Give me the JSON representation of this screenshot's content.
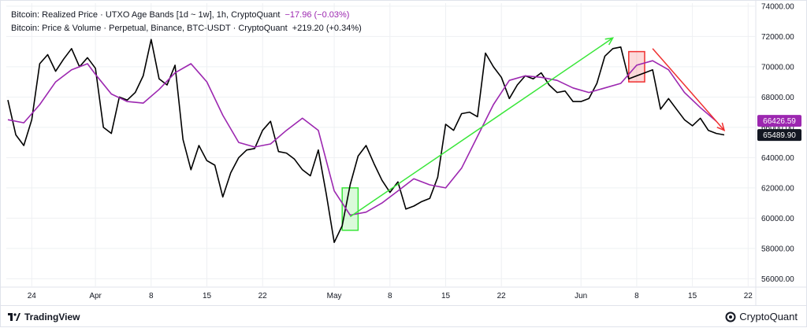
{
  "legend": {
    "line1_label": "Bitcoin: Realized Price · UTXO Age Bands [1d ~ 1w], 1h, CryptoQuant",
    "line1_value": "−17.96 (−0.03%)",
    "line2_label": "Bitcoin: Price & Volume · Perpetual, Binance, BTC-USDT · CryptoQuant",
    "line2_value": "+219.20 (+0.34%)"
  },
  "footer": {
    "left_brand": "TradingView",
    "right_brand": "CryptoQuant"
  },
  "colors": {
    "price_line": "#000000",
    "realized_line": "#9c27b0",
    "up_arrow": "#39e639",
    "down_arrow": "#ef3030",
    "grid": "#eef0f3"
  },
  "chart_data": {
    "type": "line",
    "x_ticks": [
      "24",
      "Apr",
      "8",
      "15",
      "22",
      "May",
      "8",
      "15",
      "22",
      "Jun",
      "8",
      "15",
      "22"
    ],
    "y_ticks": [
      "74000.00",
      "72000.00",
      "70000.00",
      "68000.00",
      "66000.00",
      "64000.00",
      "62000.00",
      "60000.00",
      "58000.00",
      "56000.00"
    ],
    "ylim": [
      55500,
      74200
    ],
    "price_labels": {
      "realized_price": "66426.59",
      "last_price": "65489.90"
    },
    "series": [
      {
        "name": "Bitcoin: Price & Volume · Perpetual, Binance, BTC-USDT · CryptoQuant",
        "color": "#000000",
        "x": [
          "03-21",
          "03-22",
          "03-23",
          "03-24",
          "03-25",
          "03-26",
          "03-27",
          "03-28",
          "03-29",
          "03-30",
          "03-31",
          "04-01",
          "04-02",
          "04-03",
          "04-04",
          "04-05",
          "04-06",
          "04-07",
          "04-08",
          "04-09",
          "04-10",
          "04-11",
          "04-12",
          "04-13",
          "04-14",
          "04-15",
          "04-16",
          "04-17",
          "04-18",
          "04-19",
          "04-20",
          "04-21",
          "04-22",
          "04-23",
          "04-24",
          "04-25",
          "04-26",
          "04-27",
          "04-28",
          "04-29",
          "04-30",
          "05-01",
          "05-02",
          "05-03",
          "05-04",
          "05-05",
          "05-06",
          "05-07",
          "05-08",
          "05-09",
          "05-10",
          "05-11",
          "05-12",
          "05-13",
          "05-14",
          "05-15",
          "05-16",
          "05-17",
          "05-18",
          "05-19",
          "05-20",
          "05-21",
          "05-22",
          "05-23",
          "05-24",
          "05-25",
          "05-26",
          "05-27",
          "05-28",
          "05-29",
          "05-30",
          "05-31",
          "06-01",
          "06-02",
          "06-03",
          "06-04",
          "06-05",
          "06-06",
          "06-07",
          "06-08",
          "06-09",
          "06-10",
          "06-11",
          "06-12",
          "06-13",
          "06-14",
          "06-15",
          "06-16",
          "06-17",
          "06-18",
          "06-19"
        ],
        "values": [
          67800,
          65500,
          64800,
          66500,
          70200,
          70800,
          69700,
          70500,
          71200,
          70000,
          70600,
          69900,
          66000,
          65600,
          68000,
          67800,
          68300,
          69400,
          71800,
          69200,
          68800,
          70100,
          65200,
          63200,
          64800,
          63800,
          63500,
          61400,
          63000,
          64000,
          64500,
          64600,
          65800,
          66400,
          64400,
          64300,
          63900,
          63200,
          62800,
          64500,
          61600,
          58400,
          59500,
          62200,
          64100,
          64800,
          63600,
          62500,
          61700,
          62400,
          60600,
          60800,
          61100,
          61300,
          62700,
          66200,
          65800,
          66900,
          67000,
          66700,
          70900,
          70000,
          69300,
          67900,
          68800,
          69400,
          69200,
          69600,
          68800,
          68300,
          68400,
          67700,
          67700,
          67900,
          68900,
          70700,
          71200,
          71300,
          69200,
          69400,
          69600,
          69800,
          67200,
          67900,
          67200,
          66500,
          66100,
          66600,
          65800,
          65600,
          65500
        ]
      },
      {
        "name": "Bitcoin: Realized Price · UTXO Age Bands [1d ~ 1w], 1h, CryptoQuant",
        "color": "#9c27b0",
        "x": [
          "03-21",
          "03-23",
          "03-25",
          "03-27",
          "03-29",
          "03-31",
          "04-01",
          "04-03",
          "04-05",
          "04-07",
          "04-09",
          "04-11",
          "04-13",
          "04-15",
          "04-17",
          "04-19",
          "04-21",
          "04-23",
          "04-25",
          "04-27",
          "04-29",
          "05-01",
          "05-03",
          "05-05",
          "05-07",
          "05-09",
          "05-11",
          "05-13",
          "05-15",
          "05-17",
          "05-19",
          "05-21",
          "05-23",
          "05-25",
          "05-27",
          "05-29",
          "05-31",
          "06-02",
          "06-04",
          "06-06",
          "06-08",
          "06-10",
          "06-12",
          "06-14",
          "06-16",
          "06-18"
        ],
        "values": [
          66500,
          66300,
          67500,
          69000,
          69800,
          70200,
          69500,
          68200,
          67700,
          67600,
          68500,
          69600,
          70200,
          69000,
          66800,
          65000,
          64700,
          64900,
          65800,
          66600,
          65800,
          61800,
          60200,
          60400,
          61000,
          61800,
          62600,
          62200,
          62000,
          63300,
          65400,
          67500,
          69100,
          69400,
          69300,
          69100,
          68600,
          68300,
          68600,
          68900,
          70100,
          70400,
          69800,
          68300,
          67300,
          66400
        ]
      }
    ],
    "annotations": [
      {
        "type": "box",
        "color": "green",
        "x": [
          "05-02",
          "05-04"
        ],
        "y": [
          59200,
          62000
        ]
      },
      {
        "type": "arrow",
        "color": "green",
        "x": [
          "05-03",
          "06-05"
        ],
        "y": [
          60100,
          71900
        ]
      },
      {
        "type": "box",
        "color": "red",
        "x": [
          "06-07",
          "06-09"
        ],
        "y": [
          69000,
          71000
        ]
      },
      {
        "type": "arrow",
        "color": "red",
        "x": [
          "06-10",
          "06-19"
        ],
        "y": [
          71200,
          65800
        ]
      }
    ]
  }
}
